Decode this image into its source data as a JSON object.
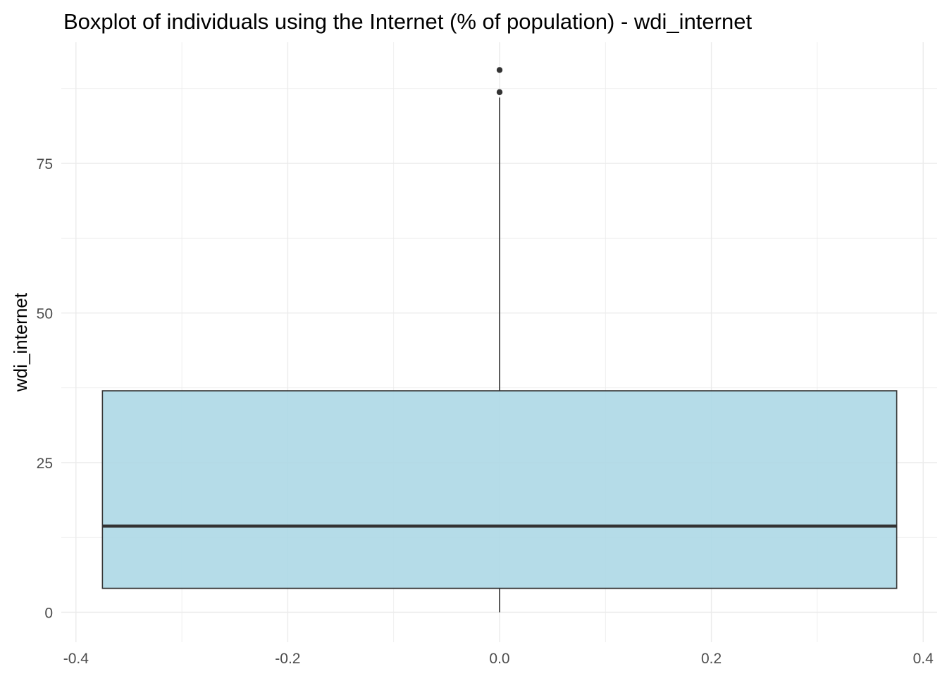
{
  "chart_data": {
    "type": "boxplot",
    "title": "Boxplot of individuals using the Internet (% of population) - wdi_internet",
    "xlabel": "",
    "ylabel": "wdi_internet",
    "xlim": [
      -0.4,
      0.4
    ],
    "ylim": [
      0,
      95
    ],
    "x_ticks": [
      -0.4,
      -0.2,
      0.0,
      0.2,
      0.4
    ],
    "x_tick_labels": [
      "-0.4",
      "-0.2",
      "0.0",
      "0.2",
      "0.4"
    ],
    "y_ticks": [
      0,
      25,
      50,
      75
    ],
    "y_tick_labels": [
      "0",
      "25",
      "50",
      "75"
    ],
    "grid": true,
    "box": {
      "x_center": 0,
      "x_min": -0.375,
      "x_max": 0.375,
      "min": 0,
      "q1": 4,
      "median": 14.4,
      "q3": 37,
      "max": 86
    },
    "outliers": [
      86.9,
      90.6
    ],
    "colors": {
      "box_fill": "#add8e6",
      "outline": "#333333",
      "grid": "#ebebeb"
    }
  }
}
